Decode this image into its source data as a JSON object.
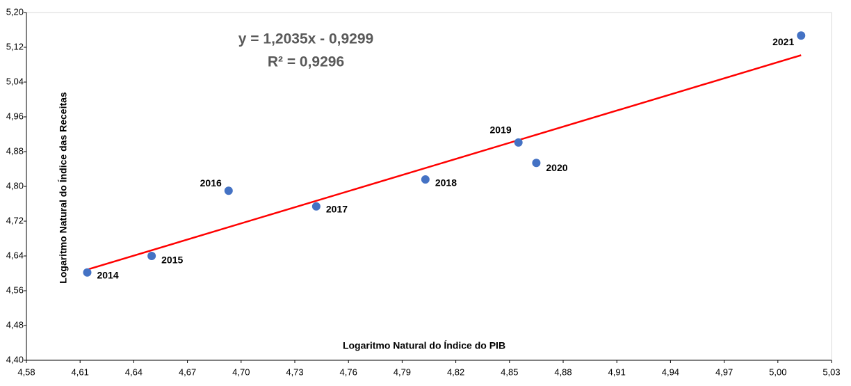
{
  "chart_data": {
    "type": "scatter",
    "x_label": "Logaritmo Natural do Índice do PIB",
    "y_label": "Logaritmo Natural do Índice das Receitas",
    "annotations": [
      "y = 1,2035x - 0,9299",
      "R² = 0,9296"
    ],
    "series": [
      {
        "labels": [
          "2014",
          "2015",
          "2016",
          "2017",
          "2018",
          "2019",
          "2020",
          "2021"
        ],
        "x": [
          4.614,
          4.65,
          4.693,
          4.742,
          4.803,
          4.855,
          4.865,
          5.013
        ],
        "values": [
          4.602,
          4.64,
          4.79,
          4.754,
          4.816,
          4.901,
          4.854,
          5.147
        ],
        "color": "#4472c4"
      }
    ],
    "trendline_color": "#ff0000",
    "xlim": [
      4.58,
      5.03
    ],
    "xticks": [
      {
        "value": 4.58,
        "label": "4,58"
      },
      {
        "value": 4.61,
        "label": "4,61"
      },
      {
        "value": 4.64,
        "label": "4,64"
      },
      {
        "value": 4.67,
        "label": "4,67"
      },
      {
        "value": 4.7,
        "label": "4,70"
      },
      {
        "value": 4.73,
        "label": "4,73"
      },
      {
        "value": 4.76,
        "label": "4,76"
      },
      {
        "value": 4.79,
        "label": "4,79"
      },
      {
        "value": 4.82,
        "label": "4,82"
      },
      {
        "value": 4.85,
        "label": "4,85"
      },
      {
        "value": 4.88,
        "label": "4,88"
      },
      {
        "value": 4.91,
        "label": "4,91"
      },
      {
        "value": 4.94,
        "label": "4,94"
      },
      {
        "value": 4.97,
        "label": "4,97"
      },
      {
        "value": 5.0,
        "label": "5,00"
      },
      {
        "value": 5.03,
        "label": "5,03"
      }
    ],
    "ylim": [
      4.4,
      5.2
    ],
    "yticks": [
      {
        "value": 4.4,
        "label": "4,40"
      },
      {
        "value": 4.48,
        "label": "4,48"
      },
      {
        "value": 4.56,
        "label": "4,56"
      },
      {
        "value": 4.64,
        "label": "4,64"
      },
      {
        "value": 4.72,
        "label": "4,72"
      },
      {
        "value": 4.8,
        "label": "4,80"
      },
      {
        "value": 4.88,
        "label": "4,88"
      },
      {
        "value": 4.96,
        "label": "4,96"
      },
      {
        "value": 5.04,
        "label": "5,04"
      },
      {
        "value": 5.12,
        "label": "5,12"
      },
      {
        "value": 5.2,
        "label": "5,20"
      }
    ]
  }
}
